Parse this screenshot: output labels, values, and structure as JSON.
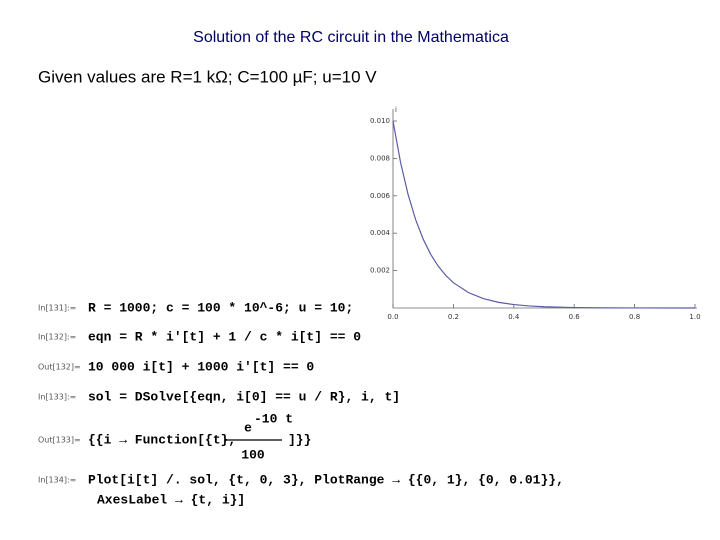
{
  "title": "Solution of the RC circuit in the Mathematica",
  "subtitle": "Given values are R=1 kΩ; C=100 µF; u=10 V",
  "cells": [
    {
      "label": "In[131]:=",
      "lines": [
        "R = 1000; c = 100 * 10^-6; u = 10;"
      ]
    },
    {
      "label": "In[132]:=",
      "lines": [
        "eqn = R * i′[t] + 1 / c * i[t] == 0"
      ]
    },
    {
      "label": "Out[132]=",
      "lines": [
        "10 000 i[t] + 1000 i′[t] == 0"
      ]
    },
    {
      "label": "In[133]:=",
      "lines": [
        "sol = DSolve[{eqn, i[0] == u / R}, i, t]"
      ]
    },
    {
      "label": "In[134]:=",
      "lines": [
        "Plot[i[t] /. sol, {t, 0, 3}, PlotRange → {{0, 1}, {0, 0.01}},",
        "AxesLabel → {t, i}]"
      ]
    }
  ],
  "output133": {
    "label": "Out[133]=",
    "prefix": "{{i → Function[{t},",
    "numerator": "e",
    "exponent": "-10 t",
    "denominator": "100",
    "suffix": "]}}"
  },
  "chart_data": {
    "type": "line",
    "y_label": "i",
    "x": [
      0,
      0.025,
      0.05,
      0.075,
      0.1,
      0.125,
      0.15,
      0.175,
      0.2,
      0.25,
      0.3,
      0.35,
      0.4,
      0.45,
      0.5,
      0.6,
      0.7,
      0.8,
      1.0
    ],
    "series": [
      {
        "color": "#5b5ba8",
        "values": [
          0.01,
          0.007788,
          0.006065,
          0.004724,
          0.003679,
          0.002865,
          0.002231,
          0.001738,
          0.001353,
          0.000821,
          0.000498,
          0.000302,
          0.000183,
          0.000111,
          6.7e-05,
          2.48e-05,
          9.1e-06,
          3.4e-06,
          5e-07
        ]
      }
    ],
    "xlim": [
      0,
      1
    ],
    "ylim": [
      0,
      0.01
    ],
    "xticks": [
      {
        "value": 0,
        "label": "0.0"
      },
      0.2,
      0.4,
      0.6,
      0.8,
      {
        "value": 1,
        "label": "1.0"
      }
    ],
    "yticks": [
      0.002,
      0.004,
      0.006,
      0.008,
      {
        "value": 0.01,
        "label": "0.010"
      }
    ]
  }
}
